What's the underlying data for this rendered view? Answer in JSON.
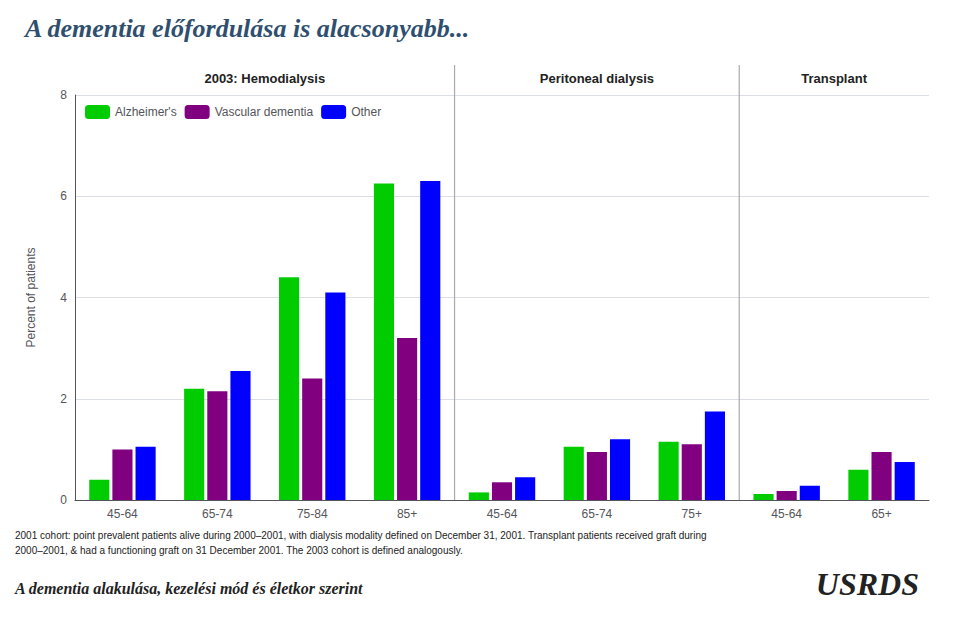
{
  "chart_data": {
    "type": "bar",
    "title": "A dementia előfordulása is alacsonyabb...",
    "ylabel": "Percent of patients",
    "categories": [
      "45-64",
      "65-74",
      "75-84",
      "85+",
      "45-64",
      "65-74",
      "75+",
      "45-64",
      "65+"
    ],
    "series": [
      {
        "name": "Alzheimer's",
        "color": "#00CC00",
        "values": [
          0.4,
          2.2,
          4.4,
          6.25,
          0.15,
          1.05,
          1.15,
          0.12,
          0.6
        ]
      },
      {
        "name": "Vascular dementia",
        "color": "#800080",
        "values": [
          1.0,
          2.15,
          2.4,
          3.2,
          0.35,
          0.95,
          1.1,
          0.18,
          0.95
        ]
      },
      {
        "name": "Other",
        "color": "#0000FF",
        "values": [
          1.05,
          2.55,
          4.1,
          6.3,
          0.45,
          1.2,
          1.75,
          0.28,
          0.75
        ]
      }
    ],
    "ylim": [
      0,
      8
    ],
    "yticks": [
      0,
      2,
      4,
      6,
      8
    ],
    "grid": true,
    "legend": "upper left",
    "annotations": [
      {
        "text": "2003: Hemodialysis",
        "span": [
          0,
          3
        ]
      },
      {
        "text": "Peritoneal dialysis",
        "span": [
          4,
          6
        ]
      },
      {
        "text": "Transplant",
        "span": [
          7,
          8
        ]
      },
      {
        "text": "2001 cohort: point prevalent patients alive during 2000–2001, with dialysis modality defined on December 31, 2001. Transplant patients received graft during"
      },
      {
        "text": "2000–2001, & had a functioning graft on 31 December 2001. The 2003 cohort is defined analogously."
      },
      {
        "text": "A dementia alakulása, kezelési mód és életkor szerint"
      },
      {
        "text": "USRDS"
      }
    ]
  }
}
